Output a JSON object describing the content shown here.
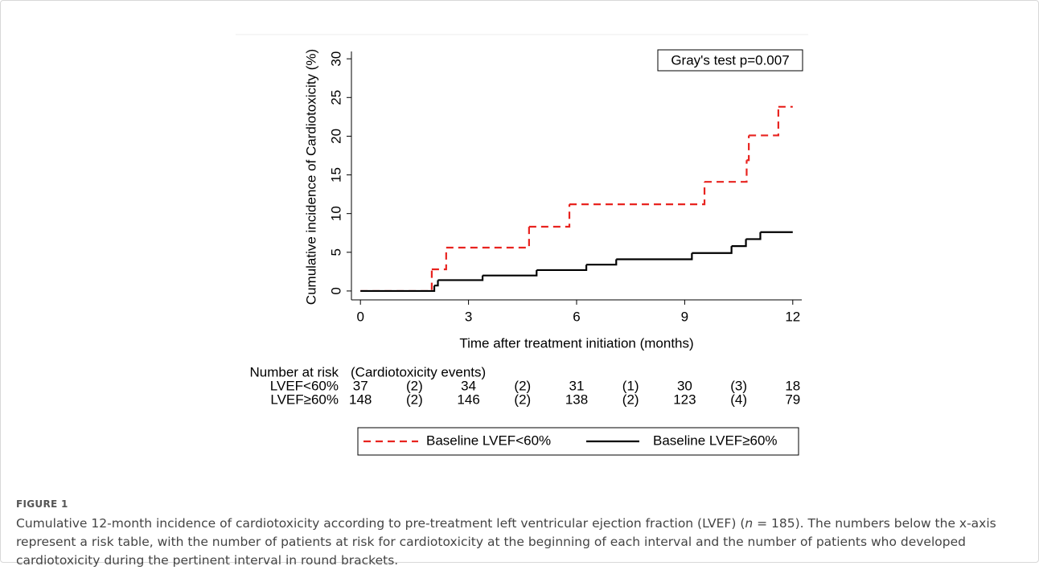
{
  "chart_data": {
    "type": "step",
    "annotation": "Gray's test p=0.007",
    "x_label": "Time after treatment initiation (months)",
    "y_label": "Cumulative incidence of Cardiotoxicity (%)",
    "xlim": [
      -0.25,
      12.25
    ],
    "xticks": [
      0,
      3,
      6,
      9,
      12
    ],
    "ylim": [
      -1.15,
      30.95
    ],
    "yticks": [
      0,
      5,
      10,
      15,
      20,
      25,
      30
    ],
    "series": [
      {
        "name": "Baseline LVEF<60%",
        "color": "#e8231f",
        "dash": true,
        "x": [
          0,
          1.98,
          2.38,
          4.68,
          5.8,
          9.55,
          10.72,
          10.78,
          11.6,
          12
        ],
        "values": [
          0,
          2.8,
          5.6,
          8.3,
          11.2,
          14.1,
          16.9,
          20.1,
          23.8,
          23.8
        ]
      },
      {
        "name": "Baseline LVEF≥60%",
        "color": "#000000",
        "dash": false,
        "x": [
          0,
          2.05,
          2.15,
          3.39,
          4.89,
          6.27,
          7.1,
          9.2,
          10.3,
          10.7,
          11.1,
          12
        ],
        "values": [
          0,
          0.7,
          1.4,
          2.0,
          2.7,
          3.4,
          4.1,
          4.9,
          5.8,
          6.7,
          7.6,
          7.6
        ]
      }
    ],
    "risk_table": {
      "title": "Number at risk",
      "events_title": "(Cardiotoxicity events)",
      "rows": [
        {
          "label": "LVEF<60%",
          "at_risk": [
            37,
            34,
            31,
            30,
            18
          ],
          "events": [
            2,
            2,
            1,
            3
          ],
          "event_labels": [
            "(2)",
            "(2)",
            "(1)",
            "(3)"
          ]
        },
        {
          "label": "LVEF≥60%",
          "at_risk": [
            148,
            146,
            138,
            123,
            79
          ],
          "events": [
            2,
            2,
            2,
            4
          ],
          "event_labels": [
            "(2)",
            "(2)",
            "(2)",
            "(4)"
          ]
        }
      ]
    }
  },
  "caption": {
    "label": "FIGURE 1",
    "parts": [
      "Cumulative 12-month incidence of cardiotoxicity according to pre-treatment left ventricular ejection fraction (LVEF) (",
      "n",
      " = 185). The numbers below the x-axis represent a risk table, with the number of patients at risk for cardiotoxicity at the beginning of each interval and the number of patients who developed cardiotoxicity during the pertinent interval in round brackets."
    ]
  }
}
